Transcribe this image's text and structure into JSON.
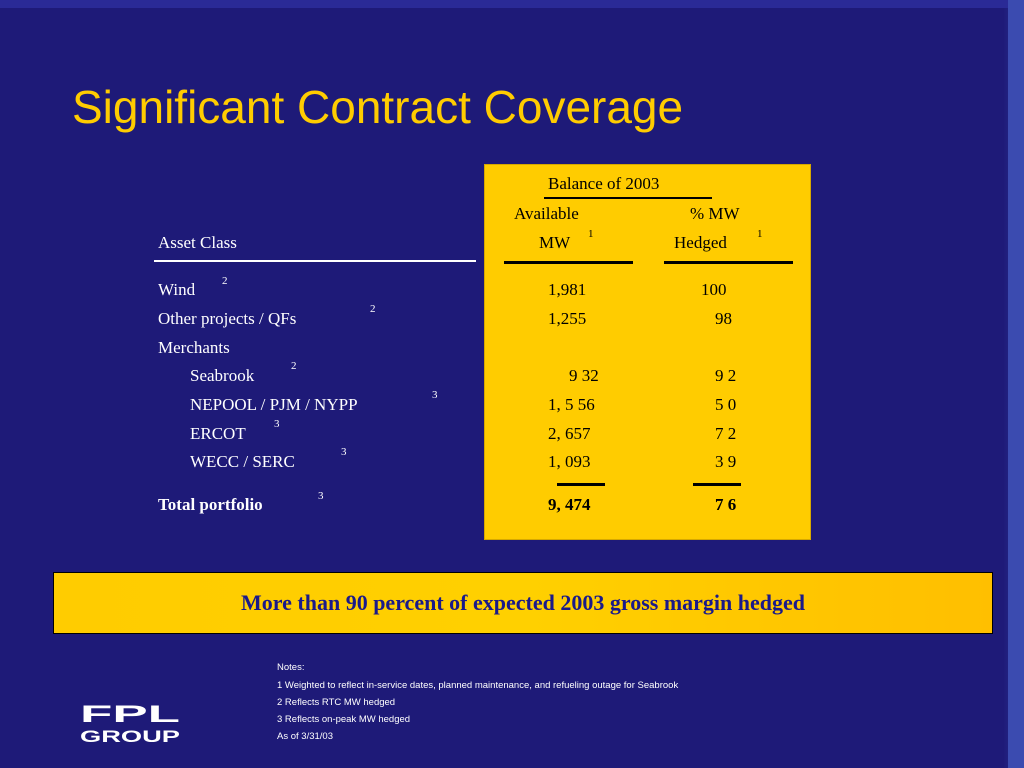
{
  "title": "Significant Contract Coverage",
  "table": {
    "period_header": "Balance of 2003",
    "col_asset_header": "Asset Class",
    "col_mw_header_line1": "Available",
    "col_mw_header_line2": "MW",
    "col_mw_header_sup": "1",
    "col_pct_header_line1": "% MW",
    "col_pct_header_line2": "Hedged",
    "col_pct_header_sup": "1",
    "rows": [
      {
        "label": "Wind",
        "sup": "2",
        "mw": "1,981",
        "pct": "100"
      },
      {
        "label": "Other projects / QFs",
        "sup": "2",
        "mw": "1,255",
        "pct": "98"
      },
      {
        "label": "Merchants",
        "sup": "",
        "mw": "",
        "pct": ""
      },
      {
        "label": "Seabrook",
        "sup": "2",
        "mw": "9 32",
        "pct": "9 2"
      },
      {
        "label": "NEPOOL / PJM / NYPP",
        "sup": "3",
        "mw": "1, 5 56",
        "pct": "5 0"
      },
      {
        "label": "ERCOT",
        "sup": "3",
        "mw": "2, 657",
        "pct": "7 2"
      },
      {
        "label": "WECC / SERC",
        "sup": "3",
        "mw": "1, 093",
        "pct": "3 9"
      }
    ],
    "total": {
      "label": "Total portfolio",
      "sup": "3",
      "mw": "9, 474",
      "pct": "7 6"
    }
  },
  "banner": "More than 90 percent of expected 2003 gross margin hedged",
  "notes": [
    "Notes:",
    "1 Weighted to reflect in-service dates, planned maintenance, and refueling outage for Seabrook",
    "2 Reflects RTC MW hedged",
    "3 Reflects on-peak MW hedged",
    "As of 3/31/03"
  ],
  "logo": {
    "line1": "FPL",
    "line2": "GROUP"
  }
}
